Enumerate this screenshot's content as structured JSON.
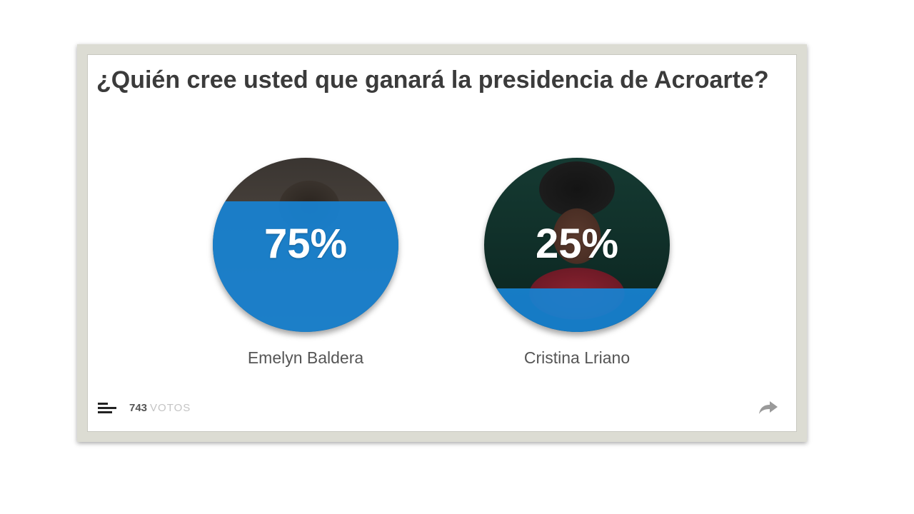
{
  "poll": {
    "question": "¿Quién cree usted que ganará la presidencia de Acroarte?",
    "options": [
      {
        "name": "Emelyn Baldera",
        "percent_label": "75%",
        "percent": 75
      },
      {
        "name": "Cristina Lriano",
        "percent_label": "25%",
        "percent": 25
      }
    ],
    "votes_count": "743",
    "votes_label": "VOTOS"
  },
  "colors": {
    "accent": "#1882d2",
    "question_text": "#3b3b3b",
    "name_text": "#555555",
    "frame": "#dcdcd3"
  },
  "icons": {
    "results": "bars-icon",
    "share": "share-icon"
  }
}
